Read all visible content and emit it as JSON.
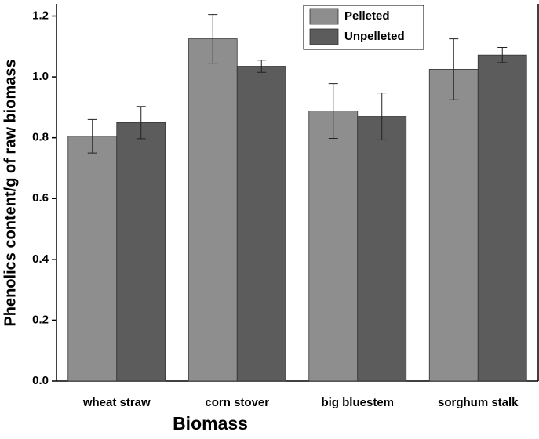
{
  "chart_data": {
    "type": "bar",
    "xlabel": "Biomass",
    "ylabel": "Phenolics content/g of raw biomass",
    "categories": [
      "wheat straw",
      "corn stover",
      "big bluestem",
      "sorghum stalk"
    ],
    "series": [
      {
        "name": "Pelleted",
        "color": "#8e8e8e",
        "values": [
          0.805,
          1.125,
          0.888,
          1.025
        ],
        "errors": [
          0.055,
          0.08,
          0.09,
          0.1
        ]
      },
      {
        "name": "Unpelleted",
        "color": "#5c5c5c",
        "values": [
          0.85,
          1.035,
          0.87,
          1.072
        ],
        "errors": [
          0.053,
          0.02,
          0.077,
          0.025
        ]
      }
    ],
    "ylim": [
      0,
      1.24
    ],
    "yticks": [
      {
        "value": 0,
        "label": "0.0"
      },
      0.2,
      0.4,
      0.6,
      0.8,
      {
        "value": 1,
        "label": "1.0"
      },
      1.2
    ],
    "legend": "upper right",
    "grid": false
  }
}
